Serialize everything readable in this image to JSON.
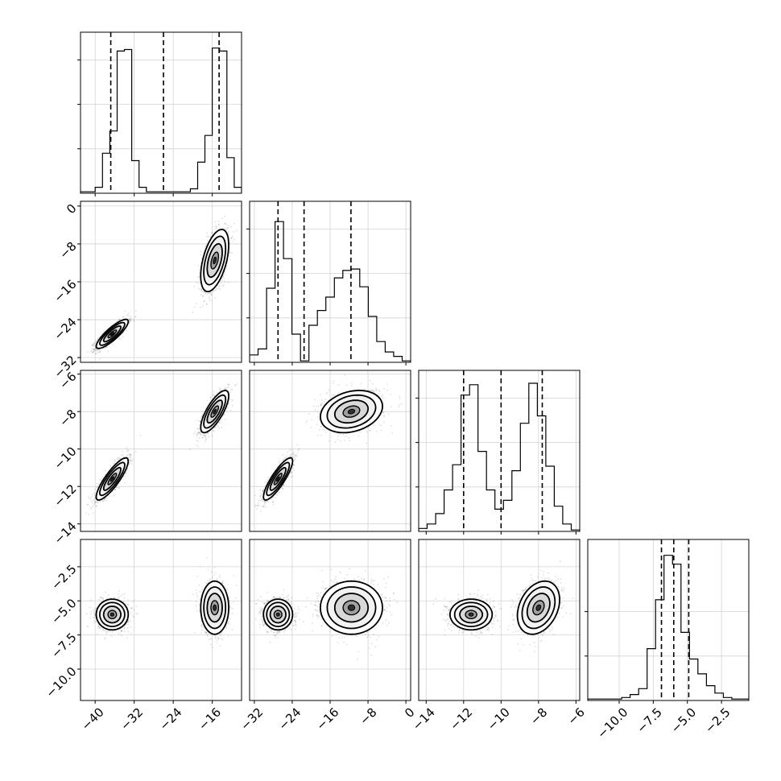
{
  "chart_data": {
    "type": "corner",
    "params": [
      {
        "range": [
          -43,
          -10
        ],
        "ticks": [
          -40,
          -32,
          -24,
          -16
        ],
        "tick_labels": [
          "−40",
          "−32",
          "−24",
          "−16"
        ],
        "hist": [
          0.01,
          0.01,
          0.04,
          0.27,
          0.42,
          0.96,
          0.97,
          0.22,
          0.04,
          0.01,
          0.01,
          0.01,
          0.01,
          0.01,
          0.01,
          0.03,
          0.21,
          0.39,
          0.98,
          0.96,
          0.24,
          0.04
        ],
        "quantiles": [
          -36.8,
          -26.0,
          -14.6
        ],
        "hist_yticks": [
          0.3,
          0.6,
          0.9
        ]
      },
      {
        "range": [
          -33,
          1
        ],
        "ticks": [
          -32,
          -24,
          -16,
          -8,
          0
        ],
        "tick_labels": [
          "−32",
          "−24",
          "−16",
          "−8",
          "0"
        ],
        "hist": [
          0.05,
          0.09,
          0.5,
          0.95,
          0.7,
          0.19,
          0.01,
          0.25,
          0.35,
          0.44,
          0.57,
          0.62,
          0.63,
          0.51,
          0.31,
          0.14,
          0.07,
          0.04,
          0.01
        ],
        "quantiles": [
          -27.0,
          -21.5,
          -11.6
        ],
        "hist_yticks": [
          0.3,
          0.6,
          0.9
        ]
      },
      {
        "range": [
          -14.4,
          -5.8
        ],
        "ticks": [
          -14,
          -12,
          -10,
          -8,
          -6
        ],
        "tick_labels": [
          "−14",
          "−12",
          "−10",
          "−8",
          "−6"
        ],
        "hist": [
          0.02,
          0.05,
          0.12,
          0.28,
          0.45,
          0.92,
          0.99,
          0.54,
          0.28,
          0.15,
          0.21,
          0.41,
          0.73,
          1.0,
          0.78,
          0.44,
          0.17,
          0.05,
          0.01
        ],
        "quantiles": [
          -12.0,
          -10.0,
          -7.8
        ],
        "hist_yticks": [
          0.3,
          0.6,
          0.9
        ]
      },
      {
        "range": [
          -12.3,
          -0.5
        ],
        "ticks": [
          -10.0,
          -7.5,
          -5.0,
          -2.5
        ],
        "tick_labels": [
          "−10.0",
          "−7.5",
          "−5.0",
          "−2.5"
        ],
        "hist": [
          0.01,
          0.01,
          0.01,
          0.01,
          0.02,
          0.04,
          0.08,
          0.35,
          0.68,
          0.98,
          0.92,
          0.46,
          0.28,
          0.18,
          0.1,
          0.05,
          0.02,
          0.01,
          0.01
        ],
        "quantiles": [
          -6.9,
          -6.0,
          -4.9
        ],
        "hist_yticks": [
          0.3,
          0.6
        ]
      }
    ],
    "clusters": [
      {
        "mean": [
          -36.5,
          -27.0,
          -11.6,
          -6.0
        ],
        "sd": [
          1.6,
          1.5,
          0.55,
          0.55
        ],
        "corr": [
          0.85,
          0.85,
          0.85,
          0,
          0,
          0
        ]
      },
      {
        "mean": [
          -15.5,
          -11.5,
          -8.0,
          -5.5
        ],
        "sd": [
          1.4,
          3.2,
          0.55,
          0.95
        ],
        "corr": [
          0.5,
          0.75,
          0.25,
          0,
          0,
          0.3
        ]
      }
    ],
    "grid": true,
    "quantile_line_style": "dashed"
  }
}
